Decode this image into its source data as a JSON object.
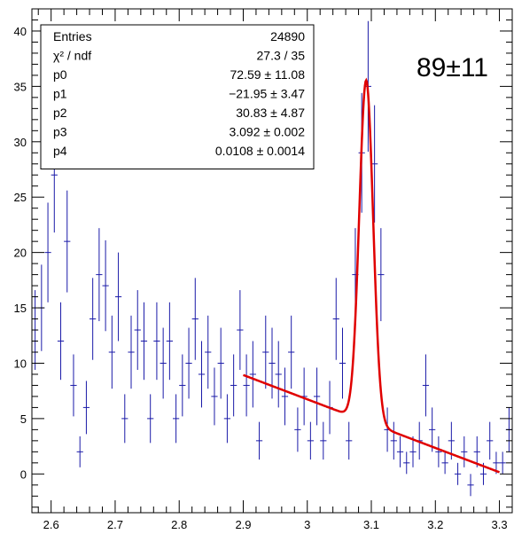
{
  "chart_data": {
    "type": "scatter",
    "xlim": [
      2.57,
      3.32
    ],
    "ylim": [
      -3.5,
      42
    ],
    "x_ticks": [
      "2.6",
      "2.7",
      "2.8",
      "2.9",
      "3",
      "3.1",
      "3.2",
      "3.3"
    ],
    "x_tick_values": [
      2.6,
      2.7,
      2.8,
      2.9,
      3.0,
      3.1,
      3.2,
      3.3
    ],
    "y_ticks": [
      "0",
      "5",
      "10",
      "15",
      "20",
      "25",
      "30",
      "35",
      "40"
    ],
    "y_tick_values": [
      0,
      5,
      10,
      15,
      20,
      25,
      30,
      35,
      40
    ],
    "colors": {
      "data": "#1a1aa8",
      "fit": "#e00000",
      "axis": "#000000"
    },
    "data_points": [
      {
        "x": 2.575,
        "y": 13,
        "e": 3.6
      },
      {
        "x": 2.585,
        "y": 15,
        "e": 3.9
      },
      {
        "x": 2.595,
        "y": 20,
        "e": 4.5
      },
      {
        "x": 2.605,
        "y": 27,
        "e": 5.2
      },
      {
        "x": 2.615,
        "y": 12,
        "e": 3.5
      },
      {
        "x": 2.625,
        "y": 21,
        "e": 4.6
      },
      {
        "x": 2.635,
        "y": 8,
        "e": 2.8
      },
      {
        "x": 2.645,
        "y": 2,
        "e": 1.4
      },
      {
        "x": 2.655,
        "y": 6,
        "e": 2.4
      },
      {
        "x": 2.665,
        "y": 14,
        "e": 3.7
      },
      {
        "x": 2.675,
        "y": 18,
        "e": 4.2
      },
      {
        "x": 2.685,
        "y": 17,
        "e": 4.1
      },
      {
        "x": 2.695,
        "y": 11,
        "e": 3.3
      },
      {
        "x": 2.705,
        "y": 16,
        "e": 4.0
      },
      {
        "x": 2.715,
        "y": 5,
        "e": 2.2
      },
      {
        "x": 2.725,
        "y": 11,
        "e": 3.3
      },
      {
        "x": 2.735,
        "y": 13,
        "e": 3.6
      },
      {
        "x": 2.745,
        "y": 12,
        "e": 3.5
      },
      {
        "x": 2.755,
        "y": 5,
        "e": 2.2
      },
      {
        "x": 2.765,
        "y": 12,
        "e": 3.5
      },
      {
        "x": 2.775,
        "y": 10,
        "e": 3.2
      },
      {
        "x": 2.785,
        "y": 12,
        "e": 3.5
      },
      {
        "x": 2.795,
        "y": 5,
        "e": 2.2
      },
      {
        "x": 2.805,
        "y": 8,
        "e": 2.8
      },
      {
        "x": 2.815,
        "y": 10,
        "e": 3.2
      },
      {
        "x": 2.825,
        "y": 14,
        "e": 3.7
      },
      {
        "x": 2.835,
        "y": 9,
        "e": 3.0
      },
      {
        "x": 2.845,
        "y": 11,
        "e": 3.3
      },
      {
        "x": 2.855,
        "y": 7,
        "e": 2.6
      },
      {
        "x": 2.865,
        "y": 10,
        "e": 3.2
      },
      {
        "x": 2.875,
        "y": 5,
        "e": 2.2
      },
      {
        "x": 2.885,
        "y": 8,
        "e": 2.8
      },
      {
        "x": 2.895,
        "y": 13,
        "e": 3.6
      },
      {
        "x": 2.905,
        "y": 8,
        "e": 2.8
      },
      {
        "x": 2.915,
        "y": 9,
        "e": 3.0
      },
      {
        "x": 2.925,
        "y": 3,
        "e": 1.7
      },
      {
        "x": 2.935,
        "y": 11,
        "e": 3.3
      },
      {
        "x": 2.945,
        "y": 10,
        "e": 3.2
      },
      {
        "x": 2.955,
        "y": 9,
        "e": 3.0
      },
      {
        "x": 2.965,
        "y": 7,
        "e": 2.6
      },
      {
        "x": 2.975,
        "y": 11,
        "e": 3.3
      },
      {
        "x": 2.985,
        "y": 4,
        "e": 2.0
      },
      {
        "x": 2.995,
        "y": 7,
        "e": 2.6
      },
      {
        "x": 3.005,
        "y": 3,
        "e": 1.7
      },
      {
        "x": 3.015,
        "y": 7,
        "e": 2.6
      },
      {
        "x": 3.025,
        "y": 3,
        "e": 1.7
      },
      {
        "x": 3.035,
        "y": 6,
        "e": 2.4
      },
      {
        "x": 3.045,
        "y": 14,
        "e": 3.7
      },
      {
        "x": 3.055,
        "y": 10,
        "e": 3.2
      },
      {
        "x": 3.065,
        "y": 3,
        "e": 1.7
      },
      {
        "x": 3.075,
        "y": 18,
        "e": 4.2
      },
      {
        "x": 3.085,
        "y": 29,
        "e": 5.4
      },
      {
        "x": 3.095,
        "y": 35,
        "e": 5.9
      },
      {
        "x": 3.105,
        "y": 28,
        "e": 5.3
      },
      {
        "x": 3.115,
        "y": 18,
        "e": 4.2
      },
      {
        "x": 3.125,
        "y": 4,
        "e": 2.0
      },
      {
        "x": 3.135,
        "y": 3,
        "e": 1.7
      },
      {
        "x": 3.145,
        "y": 2,
        "e": 1.4
      },
      {
        "x": 3.155,
        "y": 1,
        "e": 1.0
      },
      {
        "x": 3.165,
        "y": 2,
        "e": 1.4
      },
      {
        "x": 3.175,
        "y": 3,
        "e": 1.7
      },
      {
        "x": 3.185,
        "y": 8,
        "e": 2.8
      },
      {
        "x": 3.195,
        "y": 4,
        "e": 2.0
      },
      {
        "x": 3.205,
        "y": 2,
        "e": 1.4
      },
      {
        "x": 3.215,
        "y": 1,
        "e": 1.0
      },
      {
        "x": 3.225,
        "y": 3,
        "e": 1.7
      },
      {
        "x": 3.235,
        "y": 0,
        "e": 1.0
      },
      {
        "x": 3.245,
        "y": 2,
        "e": 1.4
      },
      {
        "x": 3.255,
        "y": -1,
        "e": 1.0
      },
      {
        "x": 3.265,
        "y": 2,
        "e": 1.4
      },
      {
        "x": 3.275,
        "y": 0,
        "e": 1.0
      },
      {
        "x": 3.285,
        "y": 3,
        "e": 1.7
      },
      {
        "x": 3.295,
        "y": 1,
        "e": 1.0
      },
      {
        "x": 3.305,
        "y": 1,
        "e": 1.0
      },
      {
        "x": 3.315,
        "y": 4,
        "e": 2.0
      }
    ],
    "fit": {
      "x_range": [
        2.9,
        3.3
      ],
      "p0": 72.59,
      "p1": -21.95,
      "p2": 30.83,
      "p3": 3.092,
      "p4": 0.0108
    },
    "stats_box": [
      {
        "name": "Entries",
        "value": "24890"
      },
      {
        "name": "χ² / ndf",
        "value": "27.3 / 35"
      },
      {
        "name": "p0",
        "value": "72.59 ± 11.08"
      },
      {
        "name": "p1",
        "value": "−21.95 ± 3.47"
      },
      {
        "name": "p2",
        "value": "30.83 ± 4.87"
      },
      {
        "name": "p3",
        "value": "3.092 ± 0.002"
      },
      {
        "name": "p4",
        "value": "0.0108 ± 0.0014"
      }
    ],
    "annotation": "89±11"
  }
}
